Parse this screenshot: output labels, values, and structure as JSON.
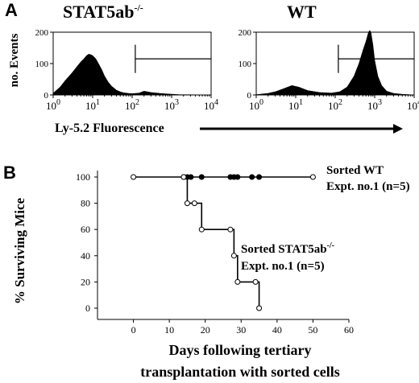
{
  "panel_a": {
    "letter": "A",
    "xlabel": "Ly-5.2 Fluorescence",
    "ylabel": "no. Events",
    "histograms": [
      {
        "title": "STAT5ab",
        "title_sup": "-/-"
      },
      {
        "title": "WT",
        "title_sup": ""
      }
    ]
  },
  "panel_b": {
    "letter": "B",
    "ylabel": "% Surviving Mice",
    "xlabel_line1": "Days following tertiary",
    "xlabel_line2": "transplantation with sorted cells",
    "legend_wt_line1": "Sorted WT",
    "legend_wt_line2": "Expt. no.1 (n=5)",
    "legend_ko_line1": "Sorted STAT5ab",
    "legend_ko_sup": "-/-",
    "legend_ko_line2": "Expt. no.1 (n=5)"
  },
  "chart_data": [
    {
      "type": "area",
      "panel": "A-left",
      "title": "STAT5ab -/-",
      "ylabel": "no. Events",
      "xlabel": "Ly-5.2 Fluorescence",
      "x_scale": "log",
      "xlim": [
        1,
        10000
      ],
      "ylim": [
        0,
        200
      ],
      "x_ticks": [
        1,
        10,
        100,
        1000,
        10000
      ],
      "x_tick_labels": [
        "10^0",
        "10^1",
        "10^2",
        "10^3",
        "10^4"
      ],
      "y_ticks": [
        0,
        100,
        200
      ],
      "gate": {
        "x_from": 120,
        "x_to": 10000
      },
      "x": [
        1,
        1.5,
        2,
        3,
        4,
        5,
        6,
        7,
        8,
        9,
        10,
        12,
        14,
        17,
        20,
        25,
        30,
        40,
        50,
        60,
        80,
        100,
        150,
        200,
        300,
        500,
        800,
        1500,
        10000
      ],
      "values": [
        5,
        25,
        45,
        70,
        90,
        105,
        115,
        125,
        130,
        128,
        125,
        115,
        100,
        80,
        60,
        40,
        28,
        15,
        10,
        7,
        5,
        4,
        6,
        12,
        8,
        5,
        3,
        1,
        0
      ]
    },
    {
      "type": "area",
      "panel": "A-right",
      "title": "WT",
      "x_scale": "log",
      "xlim": [
        1,
        10000
      ],
      "ylim": [
        0,
        200
      ],
      "x_ticks": [
        1,
        10,
        100,
        1000,
        10000
      ],
      "x_tick_labels": [
        "10^0",
        "10^1",
        "10^2",
        "10^3",
        "10^4"
      ],
      "y_ticks": [
        0,
        100,
        200
      ],
      "gate": {
        "x_from": 120,
        "x_to": 10000
      },
      "x": [
        1,
        2,
        3,
        5,
        8,
        12,
        20,
        40,
        80,
        130,
        200,
        300,
        400,
        500,
        600,
        700,
        750,
        800,
        900,
        1000,
        1200,
        1500,
        2000,
        3000,
        5000,
        10000
      ],
      "values": [
        1,
        5,
        10,
        20,
        30,
        25,
        14,
        8,
        6,
        10,
        25,
        60,
        100,
        140,
        170,
        200,
        205,
        200,
        160,
        110,
        60,
        30,
        12,
        5,
        2,
        0
      ]
    },
    {
      "type": "line",
      "panel": "B",
      "ylabel": "% Surviving Mice",
      "xlabel": "Days following tertiary transplantation with sorted cells",
      "xlim": [
        -10,
        60
      ],
      "ylim": [
        0,
        100
      ],
      "x_ticks": [
        0,
        10,
        20,
        30,
        40,
        50,
        60
      ],
      "y_ticks": [
        0,
        20,
        40,
        60,
        80,
        100
      ],
      "series": [
        {
          "name": "Sorted WT Expt. no.1 (n=5)",
          "step": true,
          "x": [
            0,
            14,
            15,
            16,
            19,
            27,
            28,
            29,
            33,
            35,
            50
          ],
          "values": [
            100,
            100,
            100,
            100,
            100,
            100,
            100,
            100,
            100,
            100,
            100
          ],
          "markers_open": [
            0,
            14,
            50
          ],
          "markers_filled": [
            15,
            16,
            19,
            27,
            28,
            29,
            33,
            35
          ]
        },
        {
          "name": "Sorted STAT5ab-/- Expt. no.1 (n=5)",
          "step": true,
          "x": [
            14,
            15,
            17,
            19,
            27,
            28,
            29,
            34,
            35
          ],
          "values": [
            100,
            80,
            80,
            60,
            60,
            40,
            20,
            20,
            0
          ]
        }
      ]
    }
  ]
}
